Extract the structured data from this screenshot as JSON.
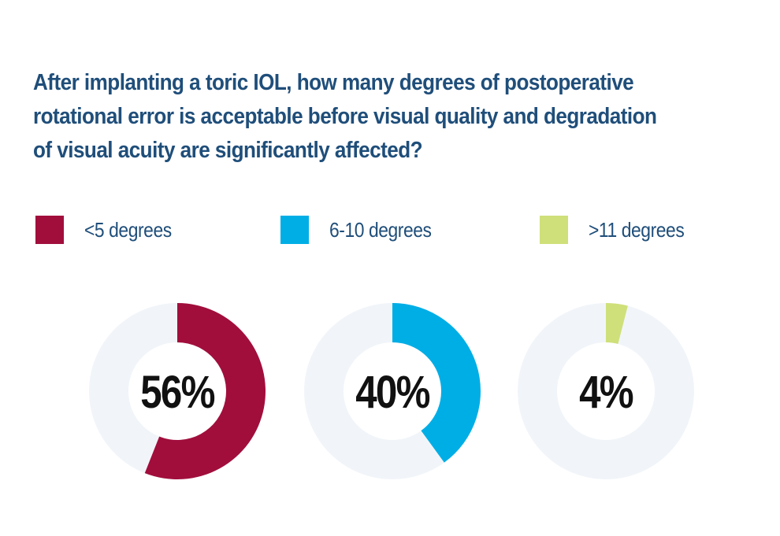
{
  "title": "After implanting a toric IOL, how many degrees of postoperative rotational error is acceptable before visual quality and degradation of visual acuity are significantly affected?",
  "chart_data": {
    "type": "pie",
    "title": "After implanting a toric IOL, how many degrees of postoperative rotational error is acceptable before visual quality and degradation of visual acuity are significantly affected?",
    "categories": [
      "<5 degrees",
      "6-10 degrees",
      ">11 degrees"
    ],
    "values": [
      56,
      40,
      4
    ],
    "value_labels": [
      "56%",
      "40%",
      "4%"
    ],
    "colors": [
      "#a10e3c",
      "#00aee6",
      "#cfe07a"
    ],
    "track_color": "#f1f5f9",
    "legend": "top",
    "style": "separate donut per category"
  }
}
